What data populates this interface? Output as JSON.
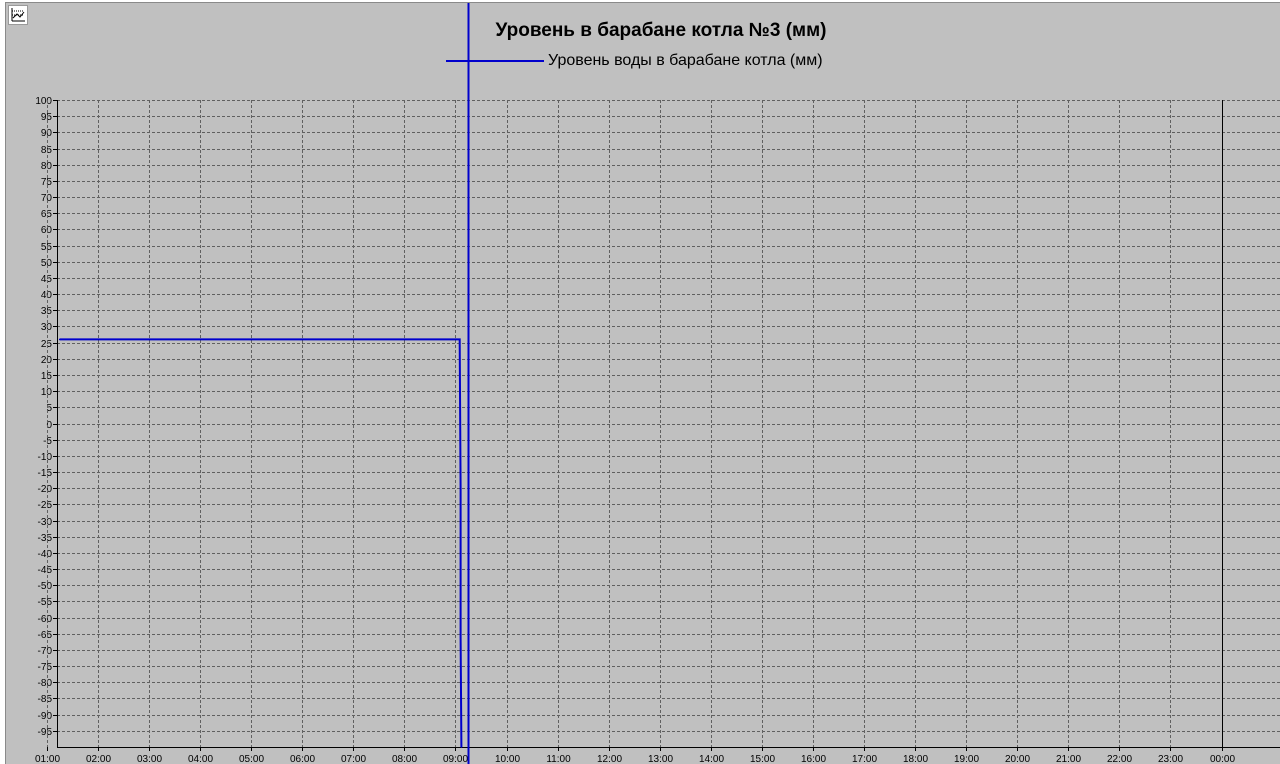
{
  "chart_data": {
    "type": "line",
    "title": "Уровень в барабане котла №3 (мм)",
    "xlabel": "",
    "ylabel": "",
    "ylim": [
      -100,
      100
    ],
    "y_ticks": [
      100,
      95,
      90,
      85,
      80,
      75,
      70,
      65,
      60,
      55,
      50,
      45,
      40,
      35,
      30,
      25,
      20,
      15,
      10,
      5,
      0,
      -5,
      -10,
      -15,
      -20,
      -25,
      -30,
      -35,
      -40,
      -45,
      -50,
      -55,
      -60,
      -65,
      -70,
      -75,
      -80,
      -85,
      -90,
      -95
    ],
    "x_tick_labels": [
      "02:00",
      "03:00",
      "04:00",
      "05:00",
      "06:00",
      "07:00",
      "08:00",
      "09:00",
      "10:00",
      "11:00",
      "12:00",
      "13:00",
      "14:00",
      "15:00",
      "16:00",
      "17:00",
      "18:00",
      "19:00",
      "20:00",
      "21:00",
      "22:00",
      "23:00",
      "00:00",
      "01:00"
    ],
    "grid": true,
    "legend_position": "top-center",
    "series": [
      {
        "name": "Уровень воды в барабане котла (мм)",
        "color": "#0000cc",
        "points": [
          {
            "t": "01:15",
            "y": 26
          },
          {
            "t": "03:00",
            "y": 26
          },
          {
            "t": "05:00",
            "y": 26
          },
          {
            "t": "07:00",
            "y": 26
          },
          {
            "t": "09:05",
            "y": 26
          },
          {
            "t": "09:05",
            "y": 25
          },
          {
            "t": "09:06",
            "y": -20
          },
          {
            "t": "09:06",
            "y": -66
          },
          {
            "t": "09:07",
            "y": -100
          }
        ]
      }
    ],
    "cursor_time": "09:15",
    "day_boundary_time": "00:00"
  }
}
